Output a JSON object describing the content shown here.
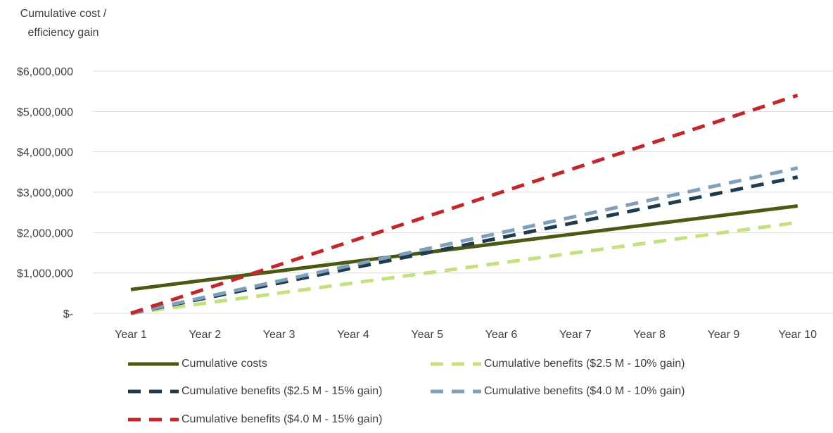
{
  "chart_data": {
    "type": "line",
    "ylabel_lines": [
      "Cumulative cost /",
      "efficiency gain"
    ],
    "categories": [
      "Year 1",
      "Year 2",
      "Year 3",
      "Year 4",
      "Year 5",
      "Year 6",
      "Year 7",
      "Year 8",
      "Year 9",
      "Year 10"
    ],
    "ylim": [
      0,
      6000000
    ],
    "yticks": [
      0,
      1000000,
      2000000,
      3000000,
      4000000,
      5000000,
      6000000
    ],
    "ytick_labels": [
      "$-",
      "$1,000,000",
      "$2,000,000",
      "$3,000,000",
      "$4,000,000",
      "$5,000,000",
      "$6,000,000"
    ],
    "grid": true,
    "legend_position": "bottom",
    "series": [
      {
        "name": "Cumulative costs",
        "color": "#4a5a12",
        "dashed": false,
        "values": [
          590000,
          820000,
          1050000,
          1280000,
          1510000,
          1740000,
          1970000,
          2200000,
          2430000,
          2660000
        ]
      },
      {
        "name": "Cumulative benefits ($2.5 M - 10% gain)",
        "color": "#c4e17f",
        "dashed": true,
        "values": [
          0,
          250000,
          500000,
          750000,
          1000000,
          1250000,
          1500000,
          1750000,
          2000000,
          2250000
        ]
      },
      {
        "name": "Cumulative benefits ($2.5 M - 15% gain)",
        "color": "#1f3b4d",
        "dashed": true,
        "values": [
          0,
          375000,
          750000,
          1125000,
          1500000,
          1875000,
          2250000,
          2625000,
          3000000,
          3375000
        ]
      },
      {
        "name": "Cumulative benefits ($4.0 M - 10% gain)",
        "color": "#7f9fba",
        "dashed": true,
        "values": [
          0,
          400000,
          800000,
          1200000,
          1600000,
          2000000,
          2400000,
          2800000,
          3200000,
          3600000
        ]
      },
      {
        "name": "Cumulative benefits ($4.0 M - 15% gain)",
        "color": "#c0282b",
        "dashed": true,
        "values": [
          0,
          600000,
          1200000,
          1800000,
          2400000,
          3000000,
          3600000,
          4200000,
          4800000,
          5400000
        ]
      }
    ]
  }
}
